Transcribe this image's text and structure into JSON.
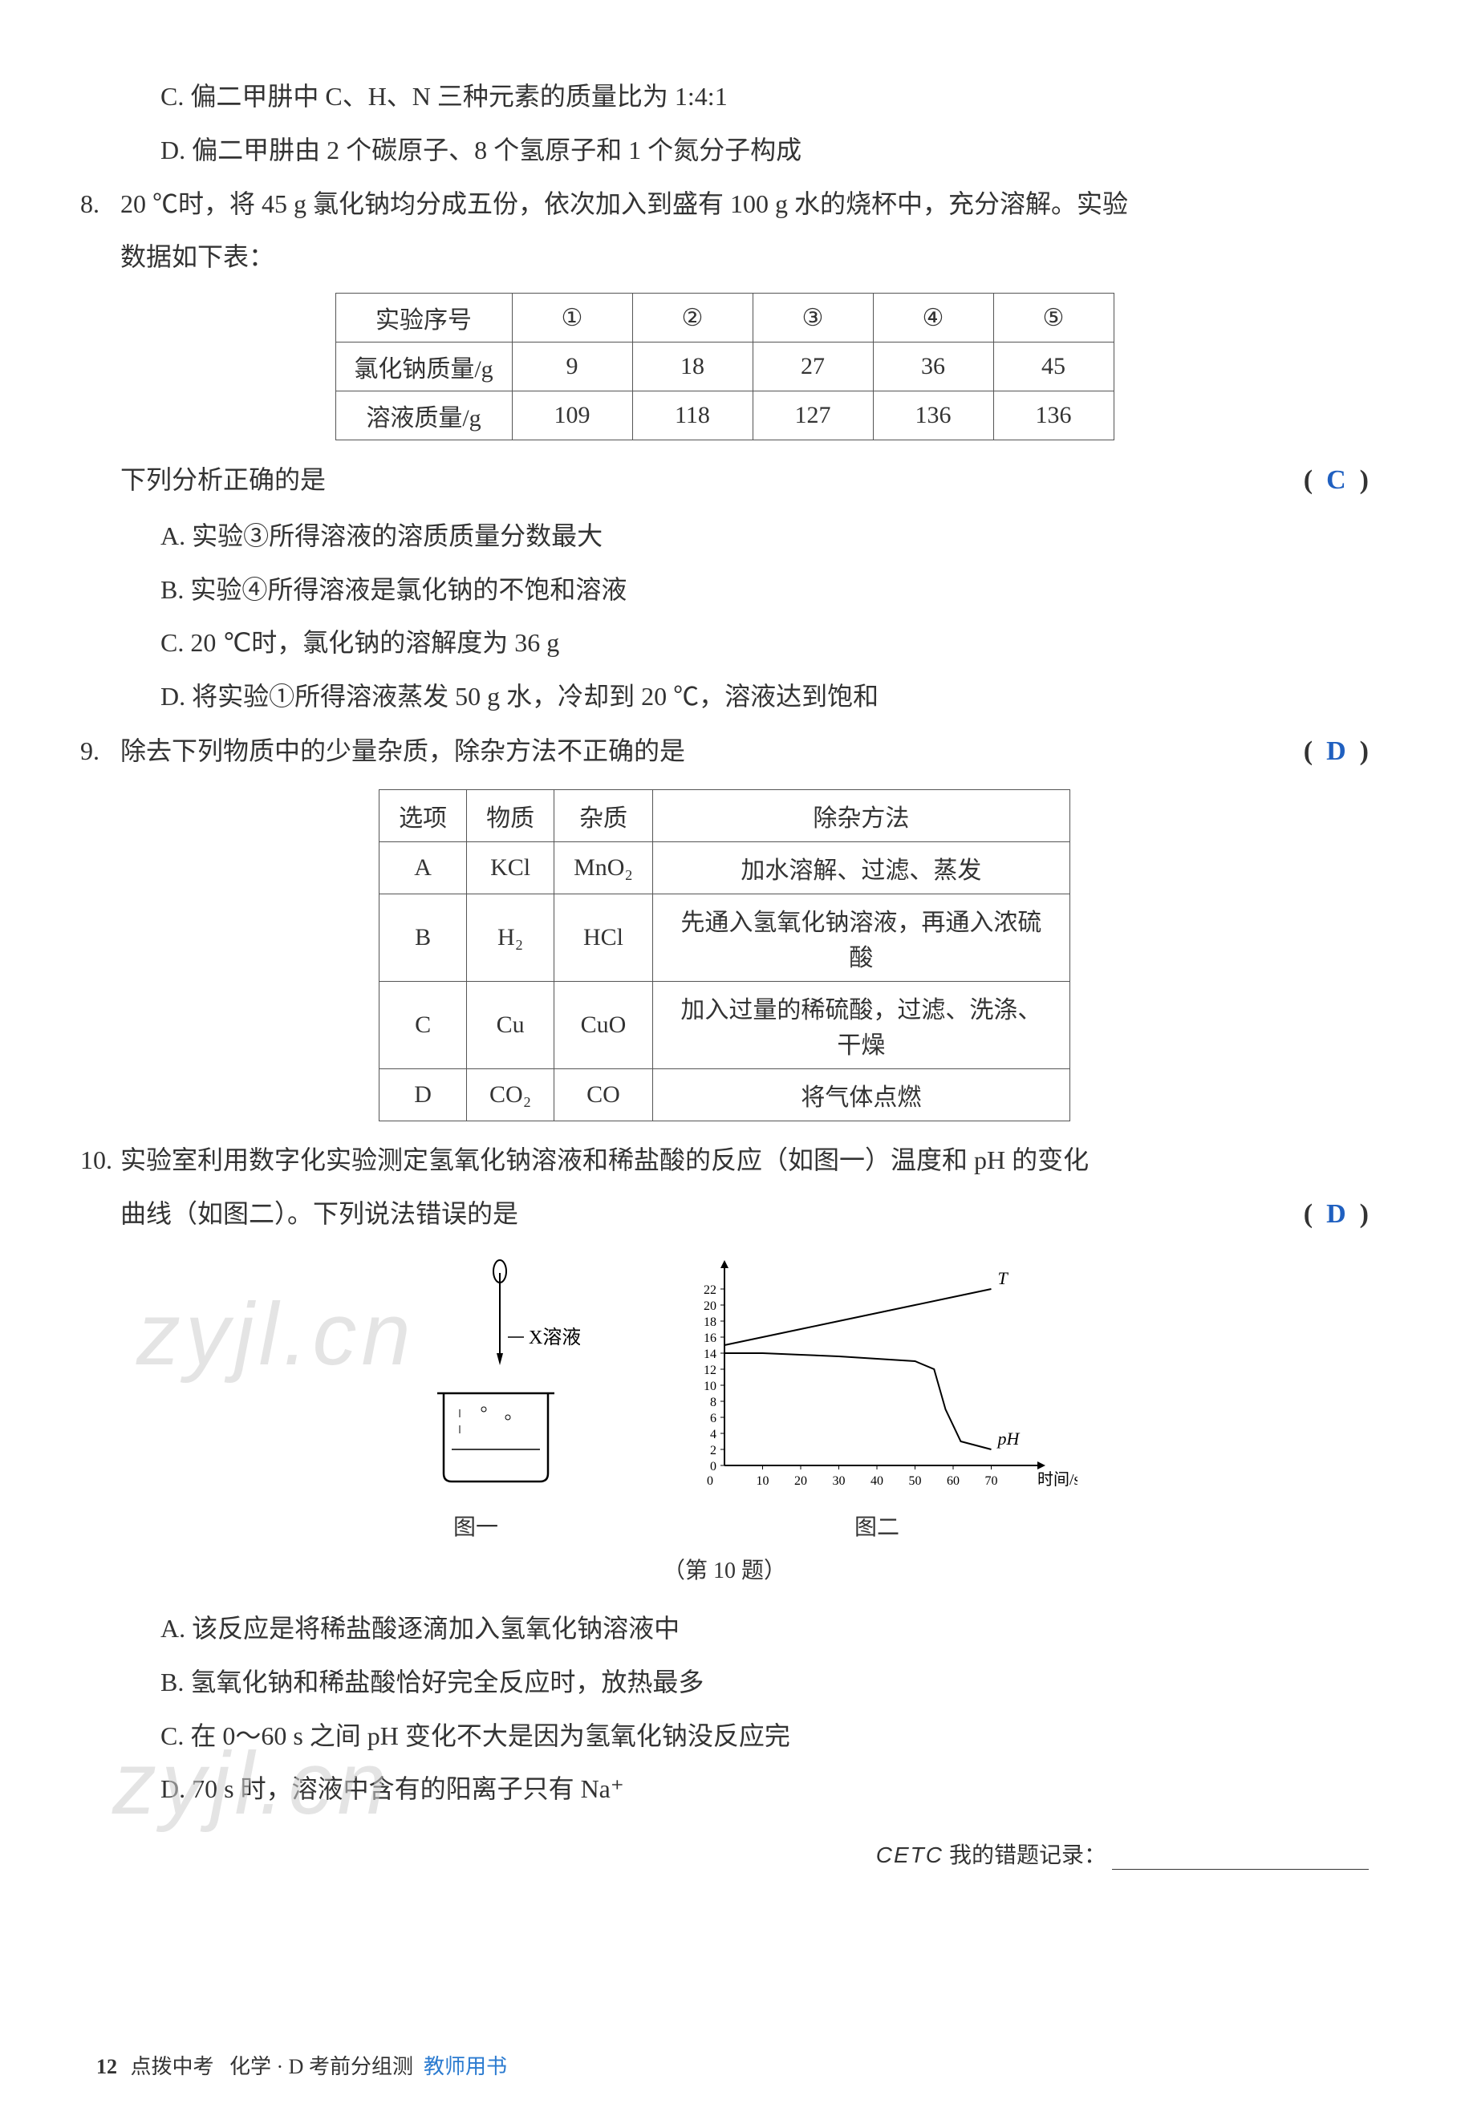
{
  "q7": {
    "optC": "C. 偏二甲肼中 C、H、N 三种元素的质量比为 1:4:1",
    "optD": "D. 偏二甲肼由 2 个碳原子、8 个氢原子和 1 个氮分子构成"
  },
  "q8": {
    "num": "8.",
    "stem_a": "20 ℃时，将 45 g 氯化钠均分成五份，依次加入到盛有 100 g 水的烧杯中，充分溶解。实验",
    "stem_b": "数据如下表：",
    "table": {
      "headers": [
        "实验序号",
        "①",
        "②",
        "③",
        "④",
        "⑤"
      ],
      "rows": [
        [
          "氯化钠质量/g",
          "9",
          "18",
          "27",
          "36",
          "45"
        ],
        [
          "溶液质量/g",
          "109",
          "118",
          "127",
          "136",
          "136"
        ]
      ]
    },
    "prompt": "下列分析正确的是",
    "answer": "C",
    "optA": "A. 实验③所得溶液的溶质质量分数最大",
    "optB": "B. 实验④所得溶液是氯化钠的不饱和溶液",
    "optC": "C. 20 ℃时，氯化钠的溶解度为 36 g",
    "optD": "D. 将实验①所得溶液蒸发 50 g 水，冷却到 20 ℃，溶液达到饱和"
  },
  "q9": {
    "num": "9.",
    "stem": "除去下列物质中的少量杂质，除杂方法不正确的是",
    "answer": "D",
    "table": {
      "headers": [
        "选项",
        "物质",
        "杂质",
        "除杂方法"
      ],
      "rows": [
        [
          "A",
          "KCl",
          "MnO₂",
          "加水溶解、过滤、蒸发"
        ],
        [
          "B",
          "H₂",
          "HCl",
          "先通入氢氧化钠溶液，再通入浓硫酸"
        ],
        [
          "C",
          "Cu",
          "CuO",
          "加入过量的稀硫酸，过滤、洗涤、干燥"
        ],
        [
          "D",
          "CO₂",
          "CO",
          "将气体点燃"
        ]
      ]
    }
  },
  "q10": {
    "num": "10.",
    "stem_a": "实验室利用数字化实验测定氢氧化钠溶液和稀盐酸的反应（如图一）温度和 pH 的变化",
    "stem_b": "曲线（如图二）。下列说法错误的是",
    "answer": "D",
    "fig1_label": "X溶液",
    "fig1_caption": "图一",
    "fig2_caption": "图二",
    "chart": {
      "type": "line",
      "xlabel": "时间/s",
      "x_ticks": [
        "0",
        "10",
        "20",
        "30",
        "40",
        "50",
        "60",
        "70"
      ],
      "y_ticks": [
        "0",
        "2",
        "4",
        "6",
        "8",
        "10",
        "12",
        "14",
        "16",
        "18",
        "20",
        "22"
      ],
      "series": [
        {
          "name": "T",
          "color": "#000000",
          "points": [
            [
              0,
              15
            ],
            [
              10,
              16
            ],
            [
              20,
              17
            ],
            [
              30,
              18
            ],
            [
              40,
              19
            ],
            [
              50,
              20
            ],
            [
              60,
              21
            ],
            [
              70,
              22
            ]
          ]
        },
        {
          "name": "pH",
          "color": "#000000",
          "points": [
            [
              0,
              14
            ],
            [
              10,
              14
            ],
            [
              20,
              13.8
            ],
            [
              30,
              13.6
            ],
            [
              40,
              13.3
            ],
            [
              50,
              13
            ],
            [
              55,
              12
            ],
            [
              58,
              7
            ],
            [
              62,
              3
            ],
            [
              70,
              2
            ]
          ]
        }
      ],
      "xlim": [
        0,
        80
      ],
      "ylim": [
        0,
        24
      ],
      "line_color": "#000000",
      "axis_color": "#000000",
      "background": "#ffffff"
    },
    "caption": "（第 10 题）",
    "optA": "A. 该反应是将稀盐酸逐滴加入氢氧化钠溶液中",
    "optB": "B. 氢氧化钠和稀盐酸恰好完全反应时，放热最多",
    "optC": "C. 在 0～60 s 之间 pH 变化不大是因为氢氧化钠没反应完",
    "optD": "D. 70 s 时，溶液中含有的阳离子只有 Na⁺"
  },
  "cetc": {
    "label": "CETC",
    "text": "我的错题记录："
  },
  "footer": {
    "page": "12",
    "series": "点拨中考",
    "subject": "化学 · D 考前分组测",
    "role": "教师用书"
  },
  "watermark": "zyjl.cn",
  "colors": {
    "answer": "#2060c0",
    "text": "#333333",
    "footer_blue": "#2b7bd0",
    "border": "#555555",
    "bg": "#ffffff"
  }
}
